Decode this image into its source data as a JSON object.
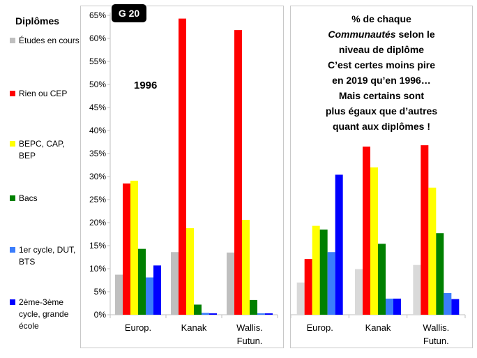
{
  "legend": {
    "title": "Diplômes",
    "items": [
      {
        "label": "Études en cours",
        "color": "#bfbfbf"
      },
      {
        "label": "Rien ou CEP",
        "color": "#ff0000"
      },
      {
        "label": "BEPC, CAP, BEP",
        "color": "#ffff00"
      },
      {
        "label": "Bacs",
        "color": "#008000"
      },
      {
        "label": "1er cycle, DUT, BTS",
        "color": "#3b7dfc"
      },
      {
        "label": "2ème-3ème cycle, grande école",
        "color": "#0000ff"
      }
    ]
  },
  "badge": "G 20",
  "caption": {
    "line1": "% de chaque",
    "line2_italic": "Communautés",
    "line2_rest": " selon le",
    "line3": "niveau de diplôme",
    "line4": "C’est certes moins pire",
    "line5": "en 2019 qu’en 1996…",
    "line6": "Mais certains sont",
    "line7": "plus égaux que d’autres",
    "line8": "quant aux diplômes !"
  },
  "chart_data": [
    {
      "type": "bar",
      "title": "1996",
      "categories": [
        "Europ.",
        "Kanak",
        "Wallis. Futun."
      ],
      "ylim": [
        0,
        65
      ],
      "y_tick_format": "percent",
      "yticks": [
        0,
        5,
        10,
        15,
        20,
        25,
        30,
        35,
        40,
        45,
        50,
        55,
        60,
        65
      ],
      "grid": false,
      "series": [
        {
          "name": "Études en cours",
          "color": "#bfbfbf",
          "values": [
            8.7,
            13.6,
            13.5
          ]
        },
        {
          "name": "Rien ou CEP",
          "color": "#ff0000",
          "values": [
            28.5,
            64.3,
            61.8
          ]
        },
        {
          "name": "BEPC, CAP, BEP",
          "color": "#ffff00",
          "values": [
            29.1,
            18.8,
            20.6
          ]
        },
        {
          "name": "Bacs",
          "color": "#008000",
          "values": [
            14.3,
            2.2,
            3.2
          ]
        },
        {
          "name": "1er cycle, DUT, BTS",
          "color": "#3b7dfc",
          "values": [
            8.1,
            0.4,
            0.3
          ]
        },
        {
          "name": "2ème-3ème cycle, grande école",
          "color": "#0000ff",
          "values": [
            10.7,
            0.3,
            0.3
          ]
        }
      ]
    },
    {
      "type": "bar",
      "title": "",
      "categories": [
        "Europ.",
        "Kanak",
        "Wallis. Futun."
      ],
      "ylim": [
        0,
        65
      ],
      "grid": false,
      "series": [
        {
          "name": "Études en cours",
          "color": "#d9d9d9",
          "values": [
            7.0,
            9.9,
            10.8
          ]
        },
        {
          "name": "Rien ou CEP",
          "color": "#ff0000",
          "values": [
            12.1,
            36.5,
            36.8
          ]
        },
        {
          "name": "BEPC, CAP, BEP",
          "color": "#ffff00",
          "values": [
            19.3,
            32.0,
            27.6
          ]
        },
        {
          "name": "Bacs",
          "color": "#008000",
          "values": [
            18.5,
            15.4,
            17.7
          ]
        },
        {
          "name": "1er cycle, DUT, BTS",
          "color": "#3b7dfc",
          "values": [
            13.6,
            3.5,
            4.7
          ]
        },
        {
          "name": "2ème-3ème cycle, grande école",
          "color": "#0000ff",
          "values": [
            30.4,
            3.5,
            3.4
          ]
        }
      ]
    }
  ]
}
